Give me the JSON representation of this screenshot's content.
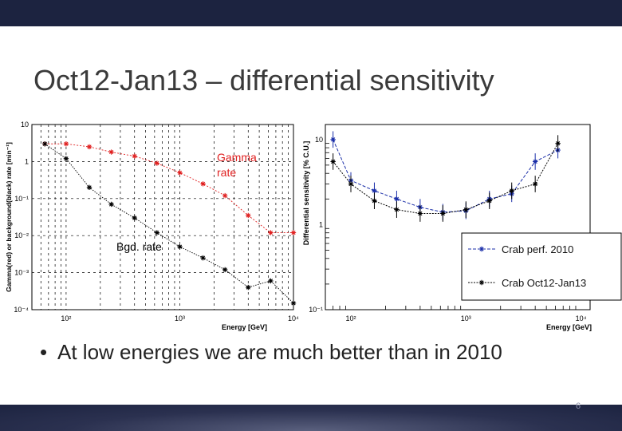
{
  "slide": {
    "title": "Oct12-Jan13 – differential sensitivity",
    "bullet": "At low energies we are much better than in 2010",
    "page_number": "6",
    "colors": {
      "top_bar": "#1c2340",
      "bottom_bar": "#2b3150",
      "gamma": "#e02020",
      "bgd": "#000000",
      "crab2010": "#1a2ea8"
    }
  },
  "chart_data": [
    {
      "type": "line",
      "xlabel": "Energy [GeV]",
      "ylabel": "Gamma(red) or background(black) rate [min⁻¹]",
      "xscale": "log",
      "yscale": "log",
      "xlim": [
        50,
        10000
      ],
      "ylim": [
        0.0001,
        10
      ],
      "grid": true,
      "x_tick_labels": [
        "10²",
        "10³",
        "10⁴"
      ],
      "y_tick_labels": [
        "10",
        "1",
        "10⁻¹",
        "10⁻²",
        "10⁻³",
        "10⁻⁴"
      ],
      "annotations": [
        "Gamma rate",
        "Bgd. rate"
      ],
      "series": [
        {
          "name": "Gamma rate",
          "color": "#e02020",
          "x": [
            65,
            100,
            160,
            250,
            400,
            630,
            1000,
            1600,
            2500,
            4000,
            6300,
            10000
          ],
          "y": [
            3.0,
            3.0,
            2.5,
            1.8,
            1.4,
            0.9,
            0.5,
            0.25,
            0.12,
            0.035,
            0.012,
            0.012
          ]
        },
        {
          "name": "Bgd. rate",
          "color": "#000000",
          "x": [
            65,
            100,
            160,
            250,
            400,
            630,
            1000,
            1600,
            2500,
            4000,
            6300,
            10000
          ],
          "y": [
            3.0,
            1.2,
            0.2,
            0.07,
            0.03,
            0.012,
            0.005,
            0.0025,
            0.0012,
            0.0004,
            0.0006,
            0.00015
          ]
        }
      ]
    },
    {
      "type": "line",
      "xlabel": "Energy [GeV]",
      "ylabel": "Differential sensitivity [% C.U.]",
      "xscale": "log",
      "yscale": "log",
      "xlim": [
        60,
        12000
      ],
      "ylim": [
        0.1,
        15
      ],
      "x_tick_labels": [
        "10²",
        "10³",
        "10⁴"
      ],
      "y_tick_labels": [
        "10",
        "1",
        "10⁻¹"
      ],
      "legend_position": "bottom-right",
      "series": [
        {
          "name": "Crab perf. 2010",
          "color": "#1a2ea8",
          "x": [
            70,
            100,
            160,
            250,
            400,
            630,
            1000,
            1600,
            2500,
            4000,
            6300
          ],
          "y": [
            10,
            3.3,
            2.5,
            2.0,
            1.6,
            1.4,
            1.45,
            2.0,
            2.3,
            5.5,
            7.5
          ]
        },
        {
          "name": "Crab Oct12-Jan13",
          "color": "#000000",
          "x": [
            70,
            100,
            160,
            250,
            400,
            630,
            1000,
            1600,
            2500,
            4000,
            6300
          ],
          "y": [
            5.5,
            3.0,
            1.9,
            1.5,
            1.35,
            1.35,
            1.5,
            1.9,
            2.5,
            3.0,
            9.0
          ]
        }
      ]
    }
  ]
}
